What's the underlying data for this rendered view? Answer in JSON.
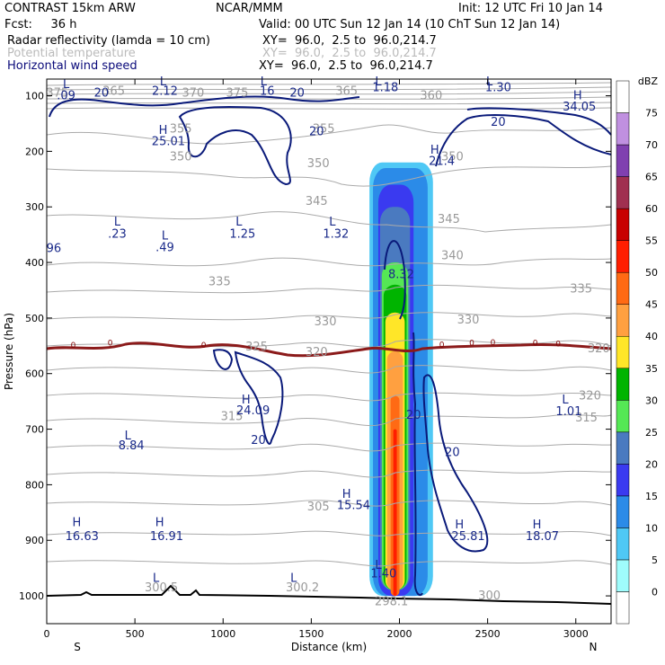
{
  "header": {
    "line1_left": "CONTRAST 15km ARW",
    "line1_center": "NCAR/MMM",
    "line1_right": "Init: 12 UTC Fri 10 Jan 14",
    "line2_left": "Fcst:     36 h",
    "line2_right": "Valid: 00 UTC Sun 12 Jan 14 (10 ChT Sun 12 Jan 14)",
    "field1_name": "Radar reflectivity (lamda = 10 cm)",
    "field1_xy": "XY=  96.0,  2.5 to  96.0,214.7",
    "field2_name": "Potential temperature",
    "field2_xy": "XY=  96.0,  2.5 to  96.0,214.7",
    "field3_name": "Horizontal wind speed",
    "field3_xy": "XY=  96.0,  2.5 to  96.0,214.7"
  },
  "colors": {
    "theta": "#aaaaaa",
    "wind": "#0a1a7a",
    "zero_line": "#8b1a1a",
    "terrain": "#000000"
  },
  "chart_data": {
    "type": "contour-cross-section",
    "xlabel": "Distance (km)",
    "ylabel": "Pressure (hPa)",
    "xlim": [
      0,
      3200
    ],
    "ylim": [
      1050,
      70
    ],
    "x_ticks": [
      0,
      500,
      1000,
      1500,
      2000,
      2500,
      3000
    ],
    "y_ticks": [
      100,
      200,
      300,
      400,
      500,
      600,
      700,
      800,
      900,
      1000
    ],
    "x_end_labels": {
      "left": "S",
      "right": "N"
    },
    "colorbar": {
      "unit": "dBZ",
      "levels": [
        0,
        5,
        10,
        15,
        20,
        25,
        30,
        35,
        40,
        45,
        50,
        55,
        60,
        65,
        70,
        75
      ],
      "colors": [
        "#ffffff",
        "#9ffcfc",
        "#4fc8f5",
        "#2b8be8",
        "#3a3af0",
        "#4a7ac0",
        "#55e855",
        "#00b400",
        "#ffe628",
        "#ffa040",
        "#ff6a14",
        "#ff1e00",
        "#c80000",
        "#a03050",
        "#8040b0",
        "#c090e0",
        "#ffffff"
      ]
    },
    "reflectivity_cells": [
      {
        "x": [
          1830,
          2190
        ],
        "p": [
          220,
          1000
        ],
        "dbz": 5
      },
      {
        "x": [
          1850,
          2160
        ],
        "p": [
          230,
          1000
        ],
        "dbz": 10
      },
      {
        "x": [
          1880,
          2080
        ],
        "p": [
          260,
          1000
        ],
        "dbz": 15
      },
      {
        "x": [
          1890,
          2060
        ],
        "p": [
          300,
          990
        ],
        "dbz": 20
      },
      {
        "x": [
          1900,
          2050
        ],
        "p": [
          400,
          990
        ],
        "dbz": 25
      },
      {
        "x": [
          1910,
          2040
        ],
        "p": [
          440,
          990
        ],
        "dbz": 30
      },
      {
        "x": [
          1920,
          2030
        ],
        "p": [
          490,
          990
        ],
        "dbz": 35
      },
      {
        "x": [
          1930,
          2020
        ],
        "p": [
          560,
          990
        ],
        "dbz": 40
      },
      {
        "x": [
          1950,
          2000
        ],
        "p": [
          640,
          1000
        ],
        "dbz": 45
      },
      {
        "x": [
          1965,
          1985
        ],
        "p": [
          700,
          1000
        ],
        "dbz": 50
      }
    ],
    "theta_labels": [
      {
        "text": "375",
        "x": 60,
        "p": 95
      },
      {
        "text": "365",
        "x": 380,
        "p": 92
      },
      {
        "text": "370",
        "x": 830,
        "p": 95
      },
      {
        "text": "375",
        "x": 1080,
        "p": 95
      },
      {
        "text": "365",
        "x": 1700,
        "p": 92
      },
      {
        "text": "360",
        "x": 2180,
        "p": 100
      },
      {
        "text": "355",
        "x": 760,
        "p": 160
      },
      {
        "text": "355",
        "x": 1570,
        "p": 160
      },
      {
        "text": "350",
        "x": 760,
        "p": 210
      },
      {
        "text": "350",
        "x": 1540,
        "p": 222
      },
      {
        "text": "350",
        "x": 2300,
        "p": 210
      },
      {
        "text": "345",
        "x": 1530,
        "p": 290
      },
      {
        "text": "345",
        "x": 2280,
        "p": 322
      },
      {
        "text": "340",
        "x": 2300,
        "p": 388
      },
      {
        "text": "335",
        "x": 980,
        "p": 435
      },
      {
        "text": "335",
        "x": 3030,
        "p": 448
      },
      {
        "text": "330",
        "x": 1580,
        "p": 507
      },
      {
        "text": "330",
        "x": 2390,
        "p": 503
      },
      {
        "text": "325",
        "x": 1190,
        "p": 552
      },
      {
        "text": "320",
        "x": 1530,
        "p": 562
      },
      {
        "text": "320",
        "x": 3130,
        "p": 555
      },
      {
        "text": "320",
        "x": 3080,
        "p": 640
      },
      {
        "text": "315",
        "x": 1050,
        "p": 677
      },
      {
        "text": "315",
        "x": 3060,
        "p": 680
      },
      {
        "text": "305",
        "x": 1540,
        "p": 840
      },
      {
        "text": "300.5",
        "x": 650,
        "p": 985
      },
      {
        "text": "300.2",
        "x": 1450,
        "p": 985
      },
      {
        "text": "298.1",
        "x": 1955,
        "p": 1010
      },
      {
        "text": "300",
        "x": 2510,
        "p": 1000
      }
    ],
    "wind_labels": [
      {
        "text": "L",
        "x": 110,
        "p": 80
      },
      {
        "text": ".09",
        "x": 110,
        "p": 100
      },
      {
        "text": "20",
        "x": 310,
        "p": 95
      },
      {
        "text": "L",
        "x": 660,
        "p": 75
      },
      {
        "text": "2.12",
        "x": 670,
        "p": 92
      },
      {
        "text": "L",
        "x": 1230,
        "p": 75
      },
      {
        "text": "16",
        "x": 1250,
        "p": 92
      },
      {
        "text": "20",
        "x": 1420,
        "p": 95
      },
      {
        "text": "L",
        "x": 1880,
        "p": 75
      },
      {
        "text": "1.18",
        "x": 1920,
        "p": 85
      },
      {
        "text": "L",
        "x": 2510,
        "p": 75
      },
      {
        "text": "1.30",
        "x": 2560,
        "p": 85
      },
      {
        "text": "H",
        "x": 3010,
        "p": 100
      },
      {
        "text": "34.05",
        "x": 3020,
        "p": 120
      },
      {
        "text": "20",
        "x": 1530,
        "p": 165
      },
      {
        "text": "20",
        "x": 2560,
        "p": 148
      },
      {
        "text": "H",
        "x": 660,
        "p": 162
      },
      {
        "text": "25.01",
        "x": 690,
        "p": 182
      },
      {
        "text": "H",
        "x": 2200,
        "p": 198
      },
      {
        "text": "21.4",
        "x": 2240,
        "p": 218
      },
      {
        "text": "L",
        "x": 400,
        "p": 327
      },
      {
        "text": ".23",
        "x": 400,
        "p": 349
      },
      {
        "text": "L",
        "x": 670,
        "p": 352
      },
      {
        "text": ".49",
        "x": 670,
        "p": 373
      },
      {
        "text": "L",
        "x": 1090,
        "p": 327
      },
      {
        "text": "1.25",
        "x": 1110,
        "p": 349
      },
      {
        "text": "L",
        "x": 1620,
        "p": 327
      },
      {
        "text": "1.32",
        "x": 1640,
        "p": 349
      },
      {
        "text": "96",
        "x": 40,
        "p": 375
      },
      {
        "text": "8.32",
        "x": 2010,
        "p": 422
      },
      {
        "text": "H",
        "x": 1130,
        "p": 647
      },
      {
        "text": "24.09",
        "x": 1170,
        "p": 667
      },
      {
        "text": "20",
        "x": 1200,
        "p": 720
      },
      {
        "text": "20",
        "x": 2080,
        "p": 675
      },
      {
        "text": "20",
        "x": 2300,
        "p": 742
      },
      {
        "text": "L",
        "x": 2940,
        "p": 647
      },
      {
        "text": "1.01",
        "x": 2960,
        "p": 668
      },
      {
        "text": "L",
        "x": 460,
        "p": 712
      },
      {
        "text": "8.84",
        "x": 480,
        "p": 730
      },
      {
        "text": "H",
        "x": 1700,
        "p": 817
      },
      {
        "text": "15.54",
        "x": 1740,
        "p": 837
      },
      {
        "text": "H",
        "x": 170,
        "p": 868
      },
      {
        "text": "16.63",
        "x": 200,
        "p": 893
      },
      {
        "text": "H",
        "x": 640,
        "p": 868
      },
      {
        "text": "16.91",
        "x": 680,
        "p": 893
      },
      {
        "text": "H",
        "x": 2340,
        "p": 872
      },
      {
        "text": "25.81",
        "x": 2390,
        "p": 893
      },
      {
        "text": "H",
        "x": 2780,
        "p": 872
      },
      {
        "text": "18.07",
        "x": 2810,
        "p": 893
      },
      {
        "text": "L",
        "x": 1880,
        "p": 945
      },
      {
        "text": "1.40",
        "x": 1910,
        "p": 960
      },
      {
        "text": "L",
        "x": 620,
        "p": 968
      },
      {
        "text": "L",
        "x": 1400,
        "p": 968
      }
    ],
    "zero_labels": [
      {
        "text": "0",
        "x": 150,
        "p": 547
      },
      {
        "text": "0",
        "x": 360,
        "p": 543
      },
      {
        "text": "0",
        "x": 890,
        "p": 547
      },
      {
        "text": "0",
        "x": 2240,
        "p": 546
      },
      {
        "text": "0",
        "x": 2410,
        "p": 543
      },
      {
        "text": "0",
        "x": 2530,
        "p": 542
      },
      {
        "text": "0",
        "x": 2770,
        "p": 543
      },
      {
        "text": "0",
        "x": 2900,
        "p": 545
      }
    ]
  }
}
